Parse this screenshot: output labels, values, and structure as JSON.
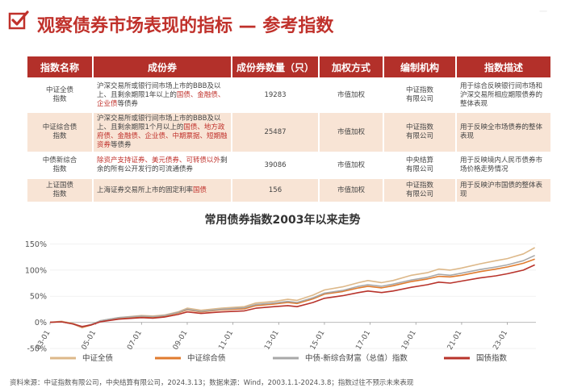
{
  "header": {
    "title": "观察债券市场表现的指标 — 参考指数",
    "watermark": "一"
  },
  "table": {
    "headers": [
      "指数名称",
      "成份券",
      "成份券数量（只）",
      "加权方式",
      "编制机构",
      "指数描述"
    ],
    "rows": [
      {
        "name": "中证全债\n指数",
        "components": [
          {
            "t": "沪深交易所或银行间市场上市的BBB及以上、且剩余期限1年以上的",
            "red": false
          },
          {
            "t": "国债、金融债、企业债",
            "red": true
          },
          {
            "t": "等债券",
            "red": false
          }
        ],
        "count": "19283",
        "weight": "市值加权",
        "org": "中证指数\n有限公司",
        "desc": "用于综合反映银行间市场和沪深交易所相应期限债券的整体表现"
      },
      {
        "name": "中证综合债\n指数",
        "components": [
          {
            "t": "沪深交易所或银行间市场上市的BBB及以上、且剩余期限1个月以上的",
            "red": false
          },
          {
            "t": "国债、地方政府债、金融债、企业债、中期票据、短期融资券",
            "red": true
          },
          {
            "t": "等债券",
            "red": false
          }
        ],
        "count": "25487",
        "weight": "市值加权",
        "org": "中证指数\n有限公司",
        "desc": "用于反映全市场债券的整体表现"
      },
      {
        "name": "中债新综合\n指数",
        "components": [
          {
            "t": "除资产支持证券、美元债券、可转债以外",
            "red": true
          },
          {
            "t": "剩余的所有公开发行的可流通债券",
            "red": false
          }
        ],
        "count": "39086",
        "weight": "市值加权",
        "org": "中央结算\n有限公司",
        "desc": "用于反映境内人民币债券市场价格走势情况"
      },
      {
        "name": "上证国债\n指数",
        "components": [
          {
            "t": "上海证券交易所上市的固定利率",
            "red": false
          },
          {
            "t": "国债",
            "red": true
          }
        ],
        "count": "156",
        "weight": "市值加权",
        "org": "中证指数\n有限公司",
        "desc": "用于反映沪市国债的整体表现"
      }
    ]
  },
  "chart_title": "常用债券指数2003年以来走势",
  "chart_data": {
    "type": "line",
    "title": "常用债券指数2003年以来走势",
    "x_range": [
      "2003-01",
      "2024-03"
    ],
    "x_ticks": [
      "03-01",
      "05-01",
      "07-01",
      "09-01",
      "11-01",
      "13-01",
      "15-01",
      "17-01",
      "19-01",
      "21-01",
      "23-01"
    ],
    "y_ticks": [
      "150%",
      "100%",
      "50%",
      "0%",
      "-50%"
    ],
    "ylim": [
      -50,
      160
    ],
    "legend_position": "bottom",
    "series": [
      {
        "name": "中证全债",
        "color": "#ddb889",
        "points": [
          [
            2003.0,
            0
          ],
          [
            2003.5,
            2
          ],
          [
            2004.0,
            -2
          ],
          [
            2004.4,
            -9
          ],
          [
            2004.8,
            -4
          ],
          [
            2005.2,
            3
          ],
          [
            2006.0,
            9
          ],
          [
            2007.0,
            13
          ],
          [
            2007.5,
            12
          ],
          [
            2008.0,
            14
          ],
          [
            2008.6,
            20
          ],
          [
            2009.0,
            27
          ],
          [
            2009.6,
            23
          ],
          [
            2010.5,
            27
          ],
          [
            2011.5,
            30
          ],
          [
            2012.0,
            37
          ],
          [
            2012.8,
            40
          ],
          [
            2013.4,
            44
          ],
          [
            2013.8,
            42
          ],
          [
            2014.5,
            52
          ],
          [
            2015.0,
            62
          ],
          [
            2015.8,
            68
          ],
          [
            2016.5,
            76
          ],
          [
            2016.9,
            80
          ],
          [
            2017.5,
            76
          ],
          [
            2018.0,
            80
          ],
          [
            2018.8,
            90
          ],
          [
            2019.5,
            95
          ],
          [
            2020.0,
            102
          ],
          [
            2020.5,
            100
          ],
          [
            2021.0,
            104
          ],
          [
            2021.8,
            112
          ],
          [
            2022.5,
            118
          ],
          [
            2023.0,
            122
          ],
          [
            2023.7,
            131
          ],
          [
            2024.2,
            143
          ]
        ]
      },
      {
        "name": "中证综合债",
        "color": "#e07b2e",
        "points": [
          [
            2003.0,
            0
          ],
          [
            2003.5,
            1
          ],
          [
            2004.0,
            -3
          ],
          [
            2004.4,
            -10
          ],
          [
            2004.8,
            -5
          ],
          [
            2005.2,
            2
          ],
          [
            2006.0,
            8
          ],
          [
            2007.0,
            11
          ],
          [
            2007.5,
            10
          ],
          [
            2008.0,
            12
          ],
          [
            2008.6,
            18
          ],
          [
            2009.0,
            24
          ],
          [
            2009.6,
            20
          ],
          [
            2010.5,
            24
          ],
          [
            2011.5,
            26
          ],
          [
            2012.0,
            32
          ],
          [
            2012.8,
            35
          ],
          [
            2013.4,
            38
          ],
          [
            2013.8,
            36
          ],
          [
            2014.5,
            45
          ],
          [
            2015.0,
            54
          ],
          [
            2015.8,
            59
          ],
          [
            2016.5,
            66
          ],
          [
            2016.9,
            69
          ],
          [
            2017.5,
            66
          ],
          [
            2018.0,
            70
          ],
          [
            2018.8,
            78
          ],
          [
            2019.5,
            83
          ],
          [
            2020.0,
            88
          ],
          [
            2020.5,
            87
          ],
          [
            2021.0,
            90
          ],
          [
            2021.8,
            97
          ],
          [
            2022.5,
            102
          ],
          [
            2023.0,
            106
          ],
          [
            2023.7,
            113
          ],
          [
            2024.2,
            121
          ]
        ]
      },
      {
        "name": "中债-新综合财富（总值）指数",
        "color": "#a8a8a8",
        "points": [
          [
            2003.0,
            0
          ],
          [
            2003.5,
            1
          ],
          [
            2004.0,
            -3
          ],
          [
            2004.4,
            -9
          ],
          [
            2004.8,
            -4
          ],
          [
            2005.2,
            3
          ],
          [
            2006.0,
            9
          ],
          [
            2007.0,
            12
          ],
          [
            2007.5,
            11
          ],
          [
            2008.0,
            13
          ],
          [
            2008.6,
            19
          ],
          [
            2009.0,
            25
          ],
          [
            2009.6,
            21
          ],
          [
            2010.5,
            25
          ],
          [
            2011.5,
            28
          ],
          [
            2012.0,
            34
          ],
          [
            2012.8,
            37
          ],
          [
            2013.4,
            40
          ],
          [
            2013.8,
            38
          ],
          [
            2014.5,
            47
          ],
          [
            2015.0,
            56
          ],
          [
            2015.8,
            61
          ],
          [
            2016.5,
            69
          ],
          [
            2016.9,
            72
          ],
          [
            2017.5,
            69
          ],
          [
            2018.0,
            73
          ],
          [
            2018.8,
            81
          ],
          [
            2019.5,
            86
          ],
          [
            2020.0,
            92
          ],
          [
            2020.5,
            90
          ],
          [
            2021.0,
            94
          ],
          [
            2021.8,
            101
          ],
          [
            2022.5,
            106
          ],
          [
            2023.0,
            110
          ],
          [
            2023.7,
            118
          ],
          [
            2024.2,
            128
          ]
        ]
      },
      {
        "name": "国债指数",
        "color": "#b8332b",
        "points": [
          [
            2003.0,
            0
          ],
          [
            2003.5,
            1
          ],
          [
            2004.0,
            -3
          ],
          [
            2004.4,
            -8
          ],
          [
            2004.8,
            -5
          ],
          [
            2005.2,
            1
          ],
          [
            2006.0,
            6
          ],
          [
            2007.0,
            9
          ],
          [
            2007.5,
            8
          ],
          [
            2008.0,
            10
          ],
          [
            2008.6,
            15
          ],
          [
            2009.0,
            20
          ],
          [
            2009.6,
            17
          ],
          [
            2010.5,
            20
          ],
          [
            2011.5,
            22
          ],
          [
            2012.0,
            27
          ],
          [
            2012.8,
            30
          ],
          [
            2013.4,
            32
          ],
          [
            2013.8,
            30
          ],
          [
            2014.5,
            38
          ],
          [
            2015.0,
            46
          ],
          [
            2015.8,
            51
          ],
          [
            2016.5,
            57
          ],
          [
            2016.9,
            60
          ],
          [
            2017.5,
            57
          ],
          [
            2018.0,
            60
          ],
          [
            2018.8,
            67
          ],
          [
            2019.5,
            72
          ],
          [
            2020.0,
            77
          ],
          [
            2020.5,
            75
          ],
          [
            2021.0,
            79
          ],
          [
            2021.8,
            85
          ],
          [
            2022.5,
            89
          ],
          [
            2023.0,
            93
          ],
          [
            2023.7,
            100
          ],
          [
            2024.2,
            110
          ]
        ]
      }
    ]
  },
  "footer": {
    "source": "资料来源：中证指数有限公司，中央结算有限公司，2024.3.13；数据来源：Wind，2003.1.1-2024.3.8；指数过往不预示未来表现"
  }
}
